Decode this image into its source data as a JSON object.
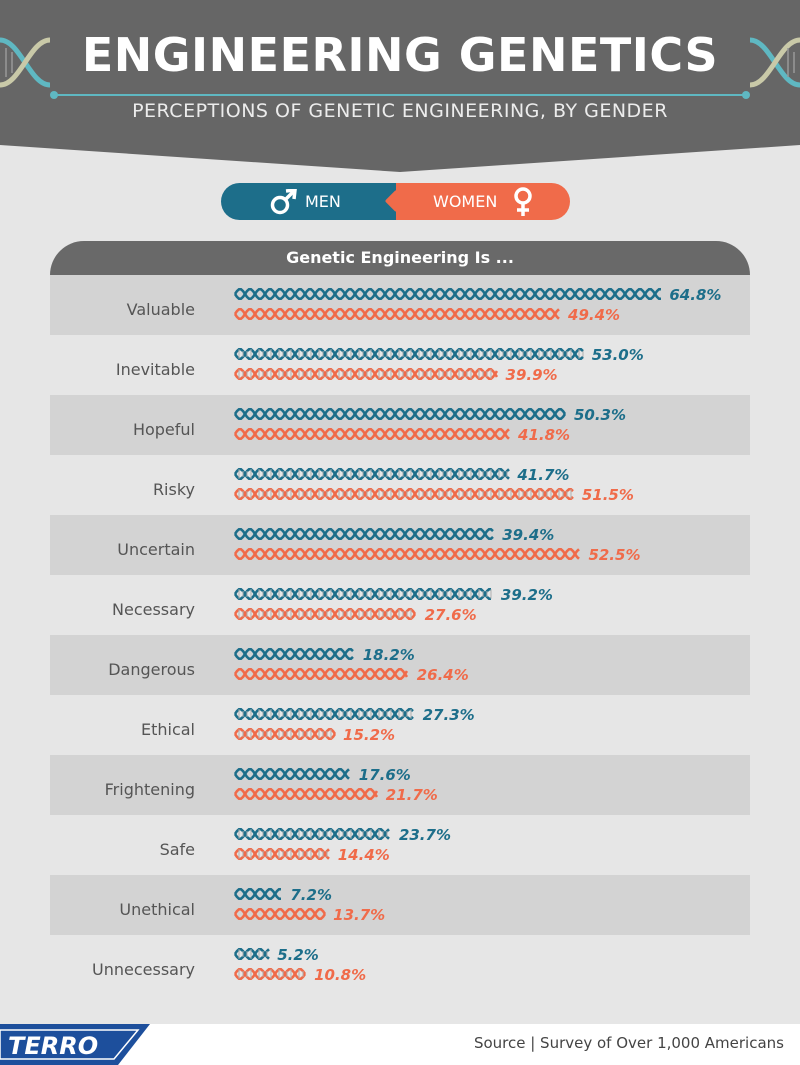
{
  "title": "ENGINEERING GENETICS",
  "subtitle": "PERCEPTIONS OF GENETIC ENGINEERING, BY GENDER",
  "legend": {
    "men": "MEN",
    "women": "WOMEN"
  },
  "colors": {
    "men": "#1d6e8a",
    "women": "#f06b4a",
    "header_bg": "#666666",
    "row_dark": "#d3d3d3",
    "row_light": "#e6e6e6"
  },
  "chart_data": {
    "type": "bar",
    "title": "Genetic Engineering Is ...",
    "categories": [
      "Valuable",
      "Inevitable",
      "Hopeful",
      "Risky",
      "Uncertain",
      "Necessary",
      "Dangerous",
      "Ethical",
      "Frightening",
      "Safe",
      "Unethical",
      "Unnecessary"
    ],
    "series": [
      {
        "name": "MEN",
        "values": [
          64.8,
          53.0,
          50.3,
          41.7,
          39.4,
          39.2,
          18.2,
          27.3,
          17.6,
          23.7,
          7.2,
          5.2
        ],
        "labels": [
          "64.8%",
          "53.0%",
          "50.3%",
          "41.7%",
          "39.4%",
          "39.2%",
          "18.2%",
          "27.3%",
          "17.6%",
          "23.7%",
          "7.2%",
          "5.2%"
        ]
      },
      {
        "name": "WOMEN",
        "values": [
          49.4,
          39.9,
          41.8,
          51.5,
          52.5,
          27.6,
          26.4,
          15.2,
          21.7,
          14.4,
          13.7,
          10.8
        ],
        "labels": [
          "49.4%",
          "39.9%",
          "41.8%",
          "51.5%",
          "52.5%",
          "27.6%",
          "26.4%",
          "15.2%",
          "21.7%",
          "14.4%",
          "13.7%",
          "10.8%"
        ]
      }
    ],
    "orientation": "horizontal",
    "legend": "top-center"
  },
  "footer": {
    "brand": "TERRO",
    "source": "Source | Survey of Over 1,000 Americans"
  },
  "icons": [
    "dna-icon",
    "male-symbol-icon",
    "female-symbol-icon"
  ]
}
